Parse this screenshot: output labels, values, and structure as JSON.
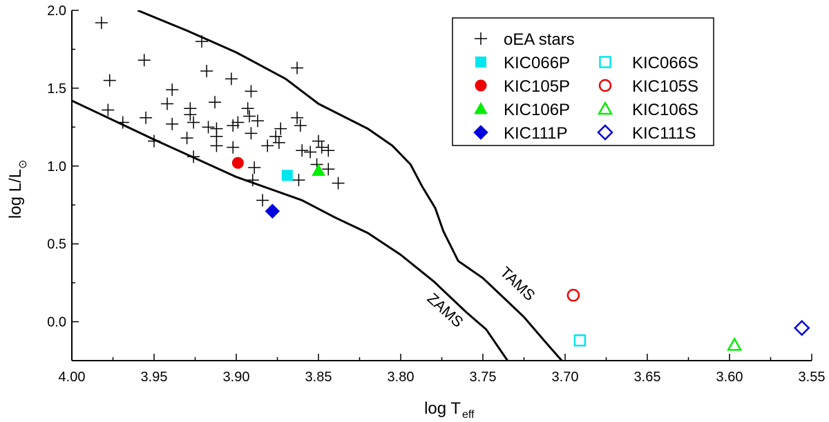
{
  "chart_data": {
    "type": "scatter",
    "xlabel": "log T",
    "xlabel_sub": "eff",
    "ylabel": "log L/L",
    "ylabel_sub": "⊙",
    "xlim": [
      4.0,
      3.55
    ],
    "ylim": [
      -0.25,
      2.0
    ],
    "x_ticks": [
      "4.00",
      "3.95",
      "3.90",
      "3.85",
      "3.80",
      "3.75",
      "3.70",
      "3.65",
      "3.60",
      "3.55"
    ],
    "y_ticks": [
      "0.0",
      "0.5",
      "1.0",
      "1.5",
      "2.0"
    ],
    "legend_position": "top-right",
    "series": [
      {
        "name": "oEA stars",
        "marker": "plus",
        "color": "#000000",
        "filled": false,
        "points": [
          [
            3.982,
            1.92
          ],
          [
            3.977,
            1.55
          ],
          [
            3.978,
            1.36
          ],
          [
            3.969,
            1.28
          ],
          [
            3.956,
            1.68
          ],
          [
            3.955,
            1.31
          ],
          [
            3.95,
            1.16
          ],
          [
            3.942,
            1.4
          ],
          [
            3.939,
            1.49
          ],
          [
            3.939,
            1.27
          ],
          [
            3.93,
            1.18
          ],
          [
            3.928,
            1.33
          ],
          [
            3.928,
            1.37
          ],
          [
            3.926,
            1.28
          ],
          [
            3.926,
            1.06
          ],
          [
            3.921,
            1.8
          ],
          [
            3.918,
            1.61
          ],
          [
            3.917,
            1.25
          ],
          [
            3.913,
            1.41
          ],
          [
            3.912,
            1.24
          ],
          [
            3.912,
            1.19
          ],
          [
            3.912,
            1.13
          ],
          [
            3.903,
            1.56
          ],
          [
            3.902,
            1.26
          ],
          [
            3.902,
            1.12
          ],
          [
            3.899,
            1.28
          ],
          [
            3.893,
            1.37
          ],
          [
            3.892,
            1.32
          ],
          [
            3.891,
            1.48
          ],
          [
            3.891,
            1.21
          ],
          [
            3.889,
            0.99
          ],
          [
            3.89,
            0.91
          ],
          [
            3.887,
            1.29
          ],
          [
            3.884,
            0.78
          ],
          [
            3.881,
            1.13
          ],
          [
            3.876,
            1.19
          ],
          [
            3.874,
            1.15
          ],
          [
            3.873,
            1.24
          ],
          [
            3.863,
            1.63
          ],
          [
            3.863,
            1.31
          ],
          [
            3.861,
            1.26
          ],
          [
            3.862,
            0.91
          ],
          [
            3.86,
            1.1
          ],
          [
            3.855,
            1.09
          ],
          [
            3.851,
            1.01
          ],
          [
            3.85,
            1.16
          ],
          [
            3.848,
            1.12
          ],
          [
            3.844,
            1.1
          ],
          [
            3.844,
            0.98
          ],
          [
            3.838,
            0.89
          ]
        ]
      },
      {
        "name": "KIC066P",
        "marker": "square",
        "color": "#00e5ee",
        "filled": true,
        "points": [
          [
            3.869,
            0.94
          ]
        ]
      },
      {
        "name": "KIC066S",
        "marker": "square",
        "color": "#00e5ee",
        "filled": false,
        "points": [
          [
            3.691,
            -0.12
          ]
        ]
      },
      {
        "name": "KIC105P",
        "marker": "circle",
        "color": "#ee0000",
        "filled": true,
        "points": [
          [
            3.899,
            1.02
          ]
        ]
      },
      {
        "name": "KIC105S",
        "marker": "circle",
        "color": "#ee0000",
        "filled": false,
        "points": [
          [
            3.695,
            0.17
          ]
        ]
      },
      {
        "name": "KIC106P",
        "marker": "triangle",
        "color": "#00ee00",
        "filled": true,
        "points": [
          [
            3.85,
            0.97
          ]
        ]
      },
      {
        "name": "KIC106S",
        "marker": "triangle",
        "color": "#00ee00",
        "filled": false,
        "points": [
          [
            3.597,
            -0.15
          ]
        ]
      },
      {
        "name": "KIC111P",
        "marker": "diamond",
        "color": "#0000dd",
        "filled": true,
        "points": [
          [
            3.878,
            0.71
          ]
        ]
      },
      {
        "name": "KIC111S",
        "marker": "diamond",
        "color": "#0000dd",
        "filled": false,
        "points": [
          [
            3.556,
            -0.04
          ]
        ]
      }
    ],
    "curves": [
      {
        "name": "ZAMS",
        "points": [
          [
            4.0,
            1.42
          ],
          [
            3.95,
            1.17
          ],
          [
            3.9,
            0.93
          ],
          [
            3.86,
            0.78
          ],
          [
            3.84,
            0.67
          ],
          [
            3.82,
            0.57
          ],
          [
            3.8,
            0.43
          ],
          [
            3.78,
            0.26
          ],
          [
            3.76,
            0.06
          ],
          [
            3.748,
            -0.05
          ],
          [
            3.735,
            -0.25
          ]
        ]
      },
      {
        "name": "TAMS",
        "points": [
          [
            3.96,
            2.0
          ],
          [
            3.93,
            1.87
          ],
          [
            3.9,
            1.73
          ],
          [
            3.87,
            1.56
          ],
          [
            3.85,
            1.4
          ],
          [
            3.82,
            1.24
          ],
          [
            3.805,
            1.13
          ],
          [
            3.794,
            1.01
          ],
          [
            3.787,
            0.87
          ],
          [
            3.779,
            0.73
          ],
          [
            3.774,
            0.58
          ],
          [
            3.765,
            0.39
          ],
          [
            3.75,
            0.28
          ],
          [
            3.738,
            0.16
          ],
          [
            3.725,
            0.03
          ],
          [
            3.712,
            -0.13
          ],
          [
            3.702,
            -0.25
          ]
        ]
      }
    ],
    "curve_labels": [
      {
        "text": "ZAMS",
        "at": [
          3.775,
          0.05
        ]
      },
      {
        "text": "TAMS",
        "at": [
          3.731,
          0.22
        ]
      }
    ],
    "legend": [
      {
        "label": "oEA stars",
        "series": "oEA stars"
      },
      {
        "label": "KIC066P",
        "series": "KIC066P"
      },
      {
        "label": "KIC066S",
        "series": "KIC066S"
      },
      {
        "label": "KIC105P",
        "series": "KIC105P"
      },
      {
        "label": "KIC105S",
        "series": "KIC105S"
      },
      {
        "label": "KIC106P",
        "series": "KIC106P"
      },
      {
        "label": "KIC106S",
        "series": "KIC106S"
      },
      {
        "label": "KIC111P",
        "series": "KIC111P"
      },
      {
        "label": "KIC111S",
        "series": "KIC111S"
      }
    ]
  }
}
